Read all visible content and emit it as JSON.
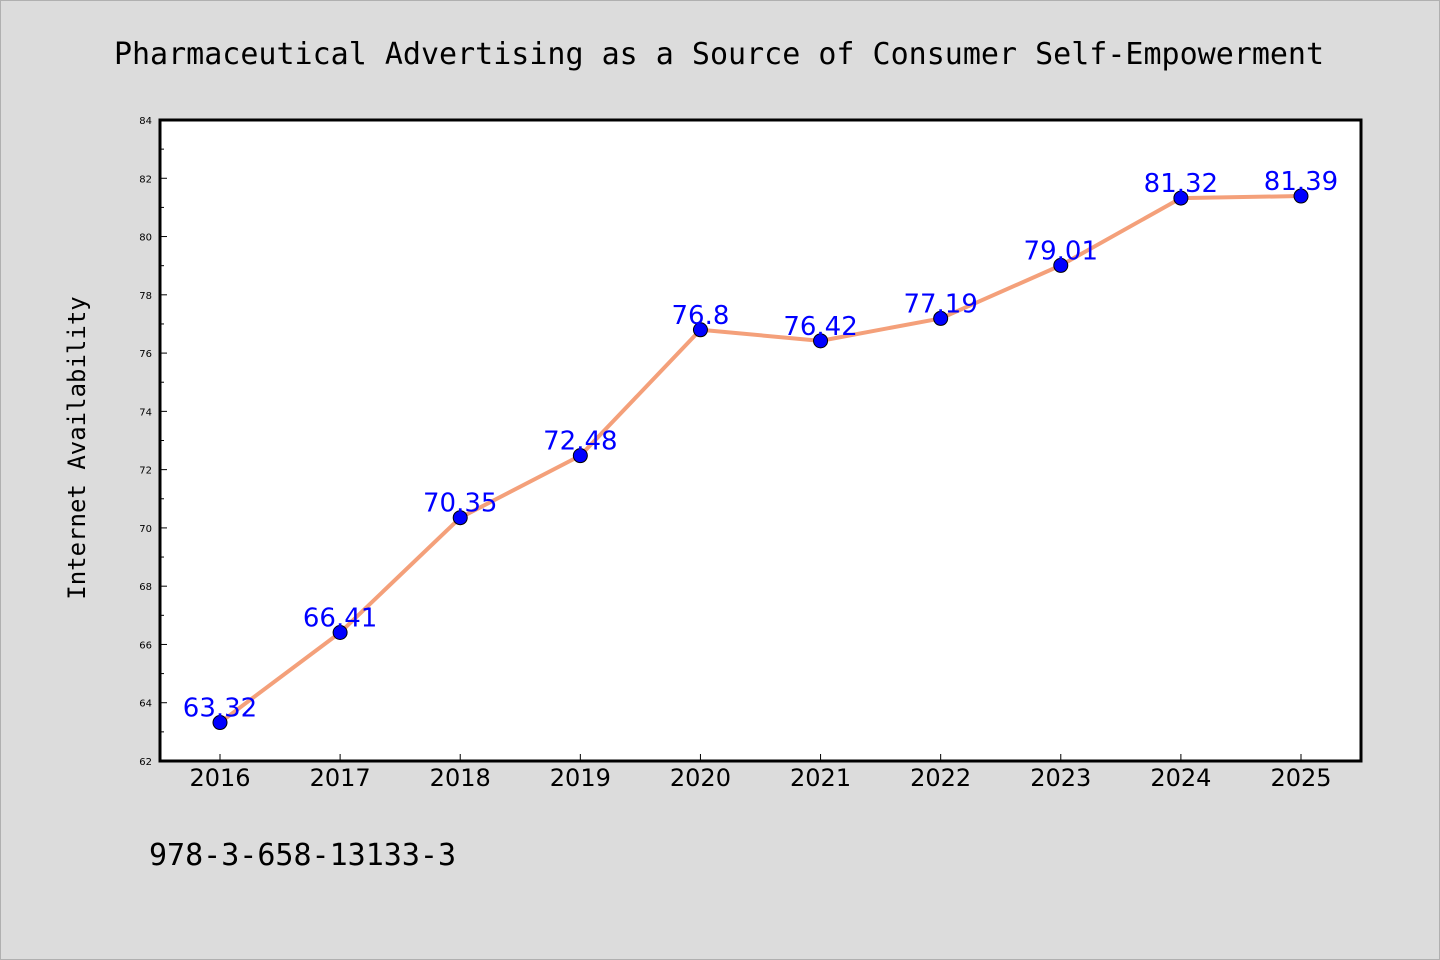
{
  "chart_data": {
    "type": "line",
    "title": "Pharmaceutical Advertising as a Source of Consumer Self-Empowerment",
    "xlabel": "",
    "ylabel": "Internet Availability",
    "categories": [
      "2016",
      "2017",
      "2018",
      "2019",
      "2020",
      "2021",
      "2022",
      "2023",
      "2024",
      "2025"
    ],
    "series": [
      {
        "values": [
          63.32,
          66.41,
          70.35,
          72.48,
          76.8,
          76.42,
          77.19,
          79.01,
          81.32,
          81.39
        ],
        "labels": [
          "63.32",
          "66.41",
          "70.35",
          "72.48",
          "76.8",
          "76.42",
          "77.19",
          "79.01",
          "81.32",
          "81.39"
        ]
      }
    ],
    "ylim": [
      62,
      84
    ],
    "yticks": [
      "62",
      "64",
      "66",
      "68",
      "70",
      "72",
      "74",
      "76",
      "78",
      "80",
      "82",
      "84"
    ],
    "grid": false,
    "line_color": "#f4a07a",
    "marker_color": "#0000ff",
    "label_color": "#0000ff",
    "footer": "978-3-658-13133-3"
  }
}
